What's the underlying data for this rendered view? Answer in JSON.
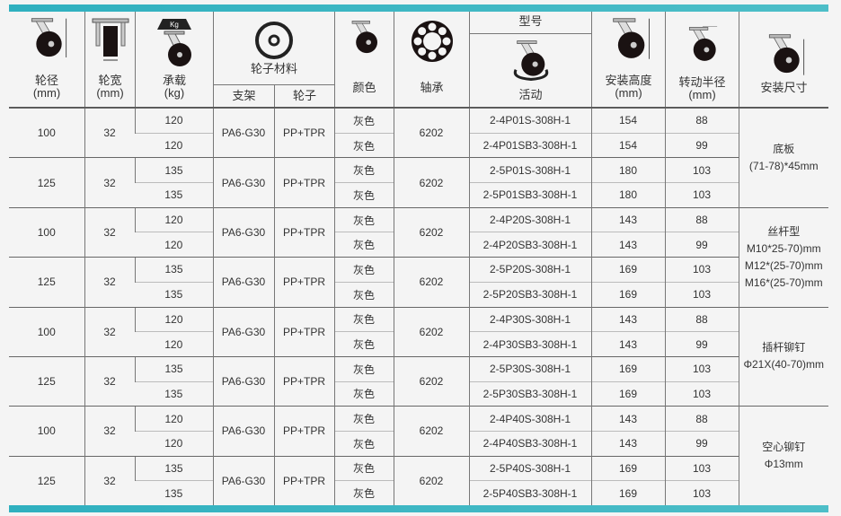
{
  "colors": {
    "accent": "#3cb6c4"
  },
  "header": {
    "diameter": "轮径",
    "diameter_unit": "(mm)",
    "width": "轮宽",
    "width_unit": "(mm)",
    "load": "承载",
    "load_unit": "(kg)",
    "load_icon_text": "Kg",
    "material": "轮子材料",
    "bracket": "支架",
    "wheel": "轮子",
    "color": "颜色",
    "bearing": "轴承",
    "model": "型号",
    "swivel": "活动",
    "height": "安装高度",
    "height_unit": "(mm)",
    "radius": "转动半径",
    "radius_unit": "(mm)",
    "mount": "安装尺寸"
  },
  "groups": [
    {
      "diameter": "100",
      "width": "32",
      "bracket": "PA6-G30",
      "wheel": "PP+TPR",
      "bearing": "6202",
      "rows": [
        {
          "load": "120",
          "color": "灰色",
          "model": "2-4P01S-308H-1",
          "height": "154",
          "radius": "88"
        },
        {
          "load": "120",
          "color": "灰色",
          "model": "2-4P01SB3-308H-1",
          "height": "154",
          "radius": "99"
        }
      ]
    },
    {
      "diameter": "125",
      "width": "32",
      "bracket": "PA6-G30",
      "wheel": "PP+TPR",
      "bearing": "6202",
      "rows": [
        {
          "load": "135",
          "color": "灰色",
          "model": "2-5P01S-308H-1",
          "height": "180",
          "radius": "103"
        },
        {
          "load": "135",
          "color": "灰色",
          "model": "2-5P01SB3-308H-1",
          "height": "180",
          "radius": "103"
        }
      ]
    },
    {
      "diameter": "100",
      "width": "32",
      "bracket": "PA6-G30",
      "wheel": "PP+TPR",
      "bearing": "6202",
      "rows": [
        {
          "load": "120",
          "color": "灰色",
          "model": "2-4P20S-308H-1",
          "height": "143",
          "radius": "88"
        },
        {
          "load": "120",
          "color": "灰色",
          "model": "2-4P20SB3-308H-1",
          "height": "143",
          "radius": "99"
        }
      ]
    },
    {
      "diameter": "125",
      "width": "32",
      "bracket": "PA6-G30",
      "wheel": "PP+TPR",
      "bearing": "6202",
      "rows": [
        {
          "load": "135",
          "color": "灰色",
          "model": "2-5P20S-308H-1",
          "height": "169",
          "radius": "103"
        },
        {
          "load": "135",
          "color": "灰色",
          "model": "2-5P20SB3-308H-1",
          "height": "169",
          "radius": "103"
        }
      ]
    },
    {
      "diameter": "100",
      "width": "32",
      "bracket": "PA6-G30",
      "wheel": "PP+TPR",
      "bearing": "6202",
      "rows": [
        {
          "load": "120",
          "color": "灰色",
          "model": "2-4P30S-308H-1",
          "height": "143",
          "radius": "88"
        },
        {
          "load": "120",
          "color": "灰色",
          "model": "2-4P30SB3-308H-1",
          "height": "143",
          "radius": "99"
        }
      ]
    },
    {
      "diameter": "125",
      "width": "32",
      "bracket": "PA6-G30",
      "wheel": "PP+TPR",
      "bearing": "6202",
      "rows": [
        {
          "load": "135",
          "color": "灰色",
          "model": "2-5P30S-308H-1",
          "height": "169",
          "radius": "103"
        },
        {
          "load": "135",
          "color": "灰色",
          "model": "2-5P30SB3-308H-1",
          "height": "169",
          "radius": "103"
        }
      ]
    },
    {
      "diameter": "100",
      "width": "32",
      "bracket": "PA6-G30",
      "wheel": "PP+TPR",
      "bearing": "6202",
      "rows": [
        {
          "load": "120",
          "color": "灰色",
          "model": "2-4P40S-308H-1",
          "height": "143",
          "radius": "88"
        },
        {
          "load": "120",
          "color": "灰色",
          "model": "2-4P40SB3-308H-1",
          "height": "143",
          "radius": "99"
        }
      ]
    },
    {
      "diameter": "125",
      "width": "32",
      "bracket": "PA6-G30",
      "wheel": "PP+TPR",
      "bearing": "6202",
      "rows": [
        {
          "load": "135",
          "color": "灰色",
          "model": "2-5P40S-308H-1",
          "height": "169",
          "radius": "103"
        },
        {
          "load": "135",
          "color": "灰色",
          "model": "2-5P40SB3-308H-1",
          "height": "169",
          "radius": "103"
        }
      ]
    }
  ],
  "mount_sizes": [
    [
      "底板",
      "(71-78)*45mm"
    ],
    [
      "丝杆型",
      "M10*25-70)mm",
      "M12*(25-70)mm",
      "M16*(25-70)mm"
    ],
    [
      "插杆铆钉",
      "Φ21X(40-70)mm"
    ],
    [
      "空心铆钉",
      "Φ13mm"
    ]
  ]
}
